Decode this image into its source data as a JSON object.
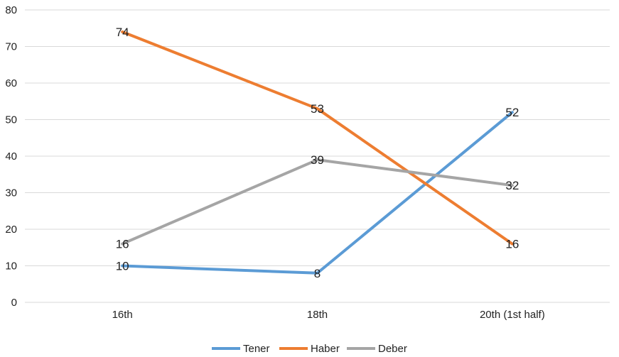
{
  "chart_data": {
    "type": "line",
    "categories": [
      "16th",
      "18th",
      "20th (1st half)"
    ],
    "series": [
      {
        "name": "Tener",
        "values": [
          10,
          8,
          52
        ],
        "color": "#5B9BD5"
      },
      {
        "name": "Haber",
        "values": [
          74,
          53,
          16
        ],
        "color": "#ED7D31"
      },
      {
        "name": "Deber",
        "values": [
          16,
          39,
          32
        ],
        "color": "#A5A5A5"
      }
    ],
    "ylim": [
      0,
      80
    ],
    "yticks": [
      0,
      10,
      20,
      30,
      40,
      50,
      60,
      70,
      80
    ],
    "grid": true,
    "legend_position": "bottom",
    "data_labels": true
  }
}
